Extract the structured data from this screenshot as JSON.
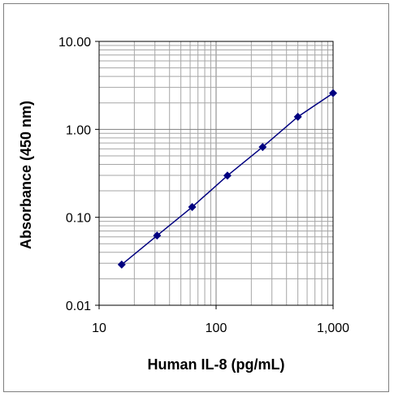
{
  "chart_data": {
    "type": "line",
    "xlabel": "Human IL-8 (pg/mL)",
    "ylabel": "Absorbance (450 nm)",
    "x_scale": "log",
    "y_scale": "log",
    "xlim": [
      10,
      1000
    ],
    "ylim": [
      0.01,
      10
    ],
    "x_tick_labels": [
      "10",
      "100",
      "1,000"
    ],
    "y_tick_labels": [
      "10.00",
      "1.00",
      "0.10",
      "0.01"
    ],
    "grid": true,
    "legend": "none",
    "series": [
      {
        "color": "#000080",
        "marker": "diamond",
        "x": [
          15.6,
          31.3,
          62.5,
          125,
          250,
          500,
          1000
        ],
        "y": [
          0.029,
          0.062,
          0.131,
          0.298,
          0.63,
          1.39,
          2.58
        ]
      }
    ]
  }
}
